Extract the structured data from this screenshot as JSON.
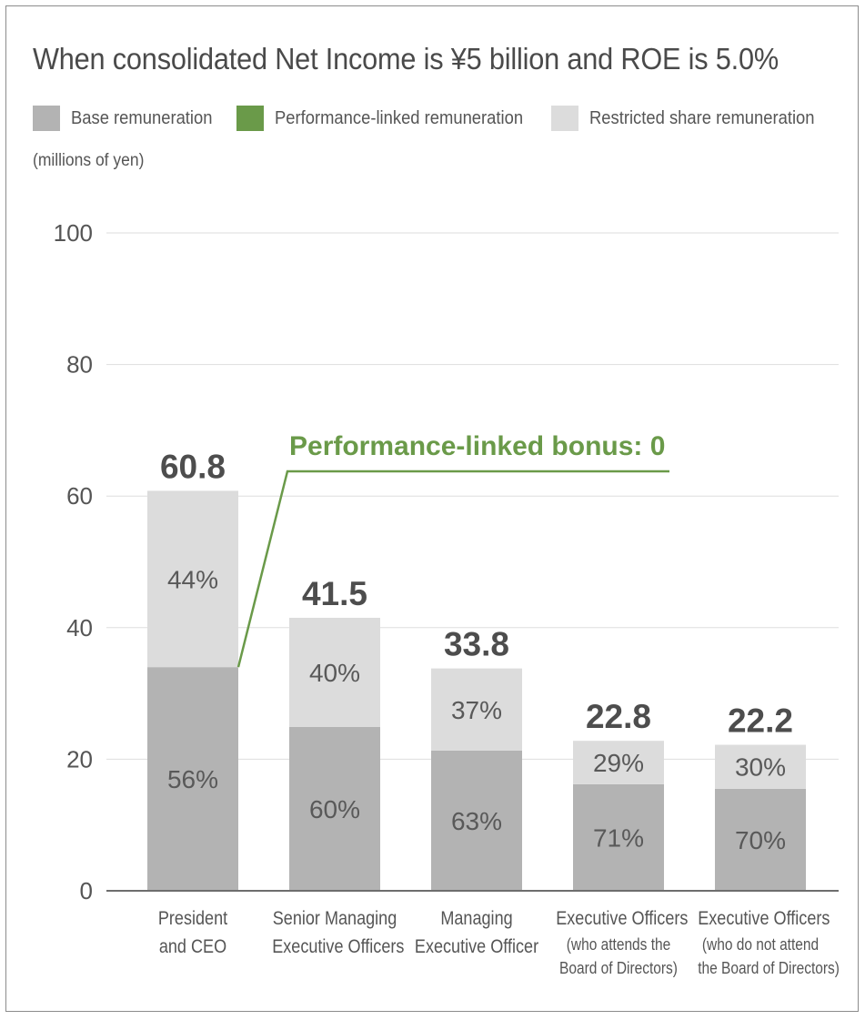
{
  "chart_data": {
    "type": "bar",
    "stacked": true,
    "title": "When consolidated Net Income is ¥5 billion and ROE is 5.0%",
    "units_label": "(millions of yen)",
    "ylim": [
      0,
      100
    ],
    "yticks": [
      "0",
      "20",
      "40",
      "60",
      "80",
      "100"
    ],
    "grid": true,
    "legend_position": "top",
    "categories": [
      {
        "line1": "President",
        "line2": "and CEO",
        "line3": ""
      },
      {
        "line1": "Senior Managing",
        "line2": "Executive Officers",
        "line3": ""
      },
      {
        "line1": "Managing",
        "line2": "Executive Officer",
        "line3": ""
      },
      {
        "line1": "Executive Officers",
        "line2": "(who attends the",
        "line3": "Board of Directors)"
      },
      {
        "line1": "Executive Officers",
        "line2": "(who do not attend",
        "line3": "the Board of Directors)"
      }
    ],
    "totals": [
      60.8,
      41.5,
      33.8,
      22.8,
      22.2
    ],
    "total_labels": [
      "60.8",
      "41.5",
      "33.8",
      "22.8",
      "22.2"
    ],
    "series": [
      {
        "name": "Base remuneration",
        "color": "#b3b3b3",
        "percent_labels": [
          "56%",
          "60%",
          "63%",
          "71%",
          "70%"
        ],
        "values": [
          34.0,
          24.9,
          21.3,
          16.2,
          15.5
        ]
      },
      {
        "name": "Performance-linked remuneration",
        "color": "#6a9a49",
        "percent_labels": [
          "",
          "",
          "",
          "",
          ""
        ],
        "values": [
          0,
          0,
          0,
          0,
          0
        ]
      },
      {
        "name": "Restricted share remuneration",
        "color": "#dcdcdc",
        "percent_labels": [
          "44%",
          "40%",
          "37%",
          "29%",
          "30%"
        ],
        "values": [
          26.8,
          16.6,
          12.5,
          6.6,
          6.7
        ]
      }
    ],
    "annotation": {
      "text": "Performance-linked bonus: 0",
      "color": "#6a9a49"
    }
  }
}
